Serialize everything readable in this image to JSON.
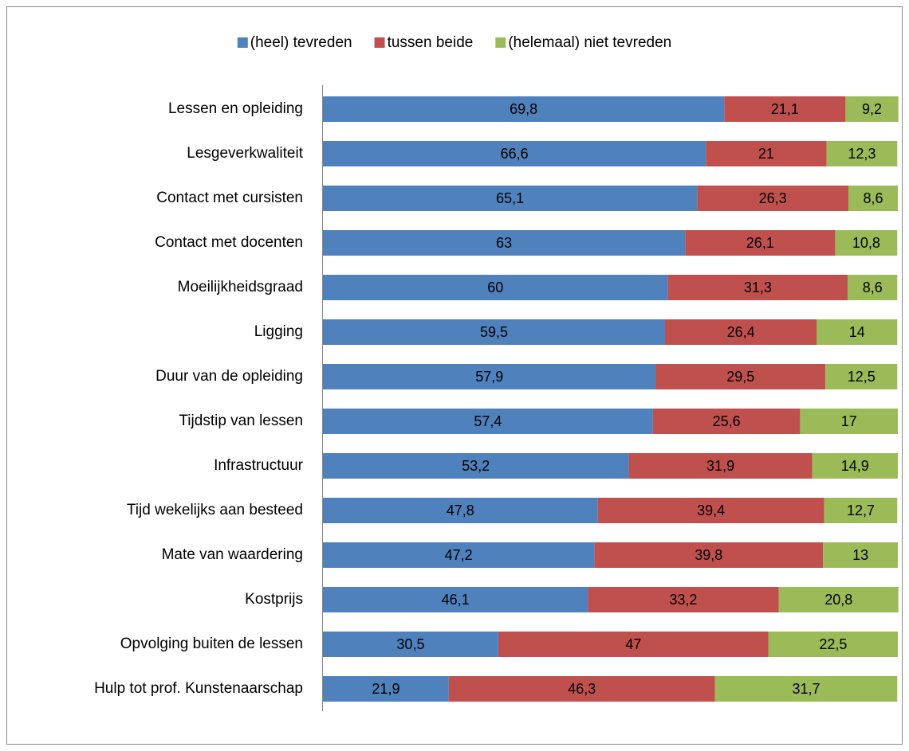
{
  "chart_data": {
    "type": "stacked_bar_horizontal",
    "categories": [
      "Lessen en opleiding",
      "Lesgeverkwaliteit",
      "Contact met cursisten",
      "Contact met docenten",
      "Moeilijkheidsgraad",
      "Ligging",
      "Duur van de opleiding",
      "Tijdstip van lessen",
      "Infrastructuur",
      "Tijd wekelijks aan besteed",
      "Mate van waardering",
      "Kostprijs",
      "Opvolging buiten de lessen",
      "Hulp tot prof. Kunstenaarschap"
    ],
    "series": [
      {
        "name": "(heel) tevreden",
        "color": "#4f81bd",
        "values": [
          69.8,
          66.6,
          65.1,
          63,
          60,
          59.5,
          57.9,
          57.4,
          53.2,
          47.8,
          47.2,
          46.1,
          30.5,
          21.9
        ],
        "value_labels": [
          "69,8",
          "66,6",
          "65,1",
          "63",
          "60",
          "59,5",
          "57,9",
          "57,4",
          "53,2",
          "47,8",
          "47,2",
          "46,1",
          "30,5",
          "21,9"
        ]
      },
      {
        "name": "tussen beide",
        "color": "#c0504d",
        "values": [
          21.1,
          21,
          26.3,
          26.1,
          31.3,
          26.4,
          29.5,
          25.6,
          31.9,
          39.4,
          39.8,
          33.2,
          47,
          46.3
        ],
        "value_labels": [
          "21,1",
          "21",
          "26,3",
          "26,1",
          "31,3",
          "26,4",
          "29,5",
          "25,6",
          "31,9",
          "39,4",
          "39,8",
          "33,2",
          "47",
          "46,3"
        ]
      },
      {
        "name": "(helemaal) niet tevreden",
        "color": "#9bbb59",
        "values": [
          9.2,
          12.3,
          8.6,
          10.8,
          8.6,
          14,
          12.5,
          17,
          14.9,
          12.7,
          13,
          20.8,
          22.5,
          31.7
        ],
        "value_labels": [
          "9,2",
          "12,3",
          "8,6",
          "10,8",
          "8,6",
          "14",
          "12,5",
          "17",
          "14,9",
          "12,7",
          "13",
          "20,8",
          "22,5",
          "31,7"
        ]
      }
    ],
    "xlim": [
      0,
      100
    ],
    "legend": "top"
  }
}
